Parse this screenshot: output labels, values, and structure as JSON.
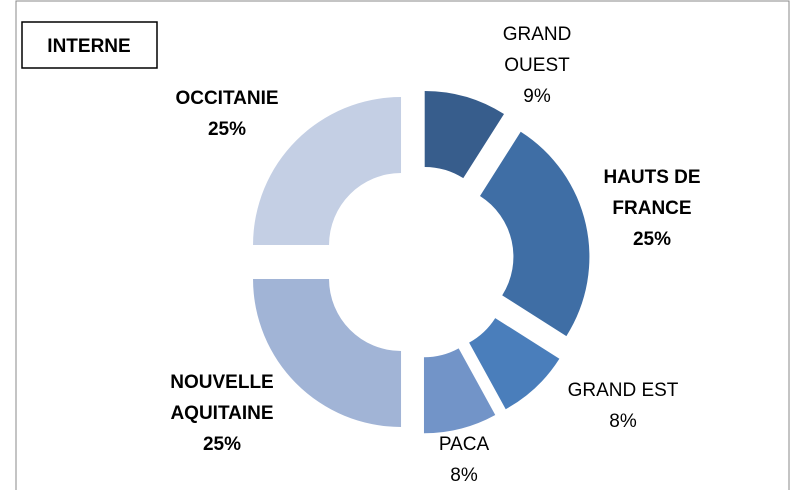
{
  "chart_data": {
    "type": "donut",
    "title": "INTERNE",
    "categories": [
      "GRAND\nOUEST",
      "HAUTS DE\nFRANCE",
      "GRAND EST",
      "PACA",
      "NOUVELLE\nAQUITAINE",
      "OCCITANIE"
    ],
    "values": [
      9,
      25,
      8,
      8,
      25,
      25
    ],
    "value_labels": [
      "9%",
      "25%",
      "8%",
      "8%",
      "25%",
      "25%"
    ],
    "colors": [
      "#375d8c",
      "#3f6ea5",
      "#4a7ebb",
      "#7294c8",
      "#a1b4d6",
      "#c4cfe4"
    ],
    "label_bold": [
      false,
      true,
      false,
      false,
      true,
      true
    ]
  }
}
